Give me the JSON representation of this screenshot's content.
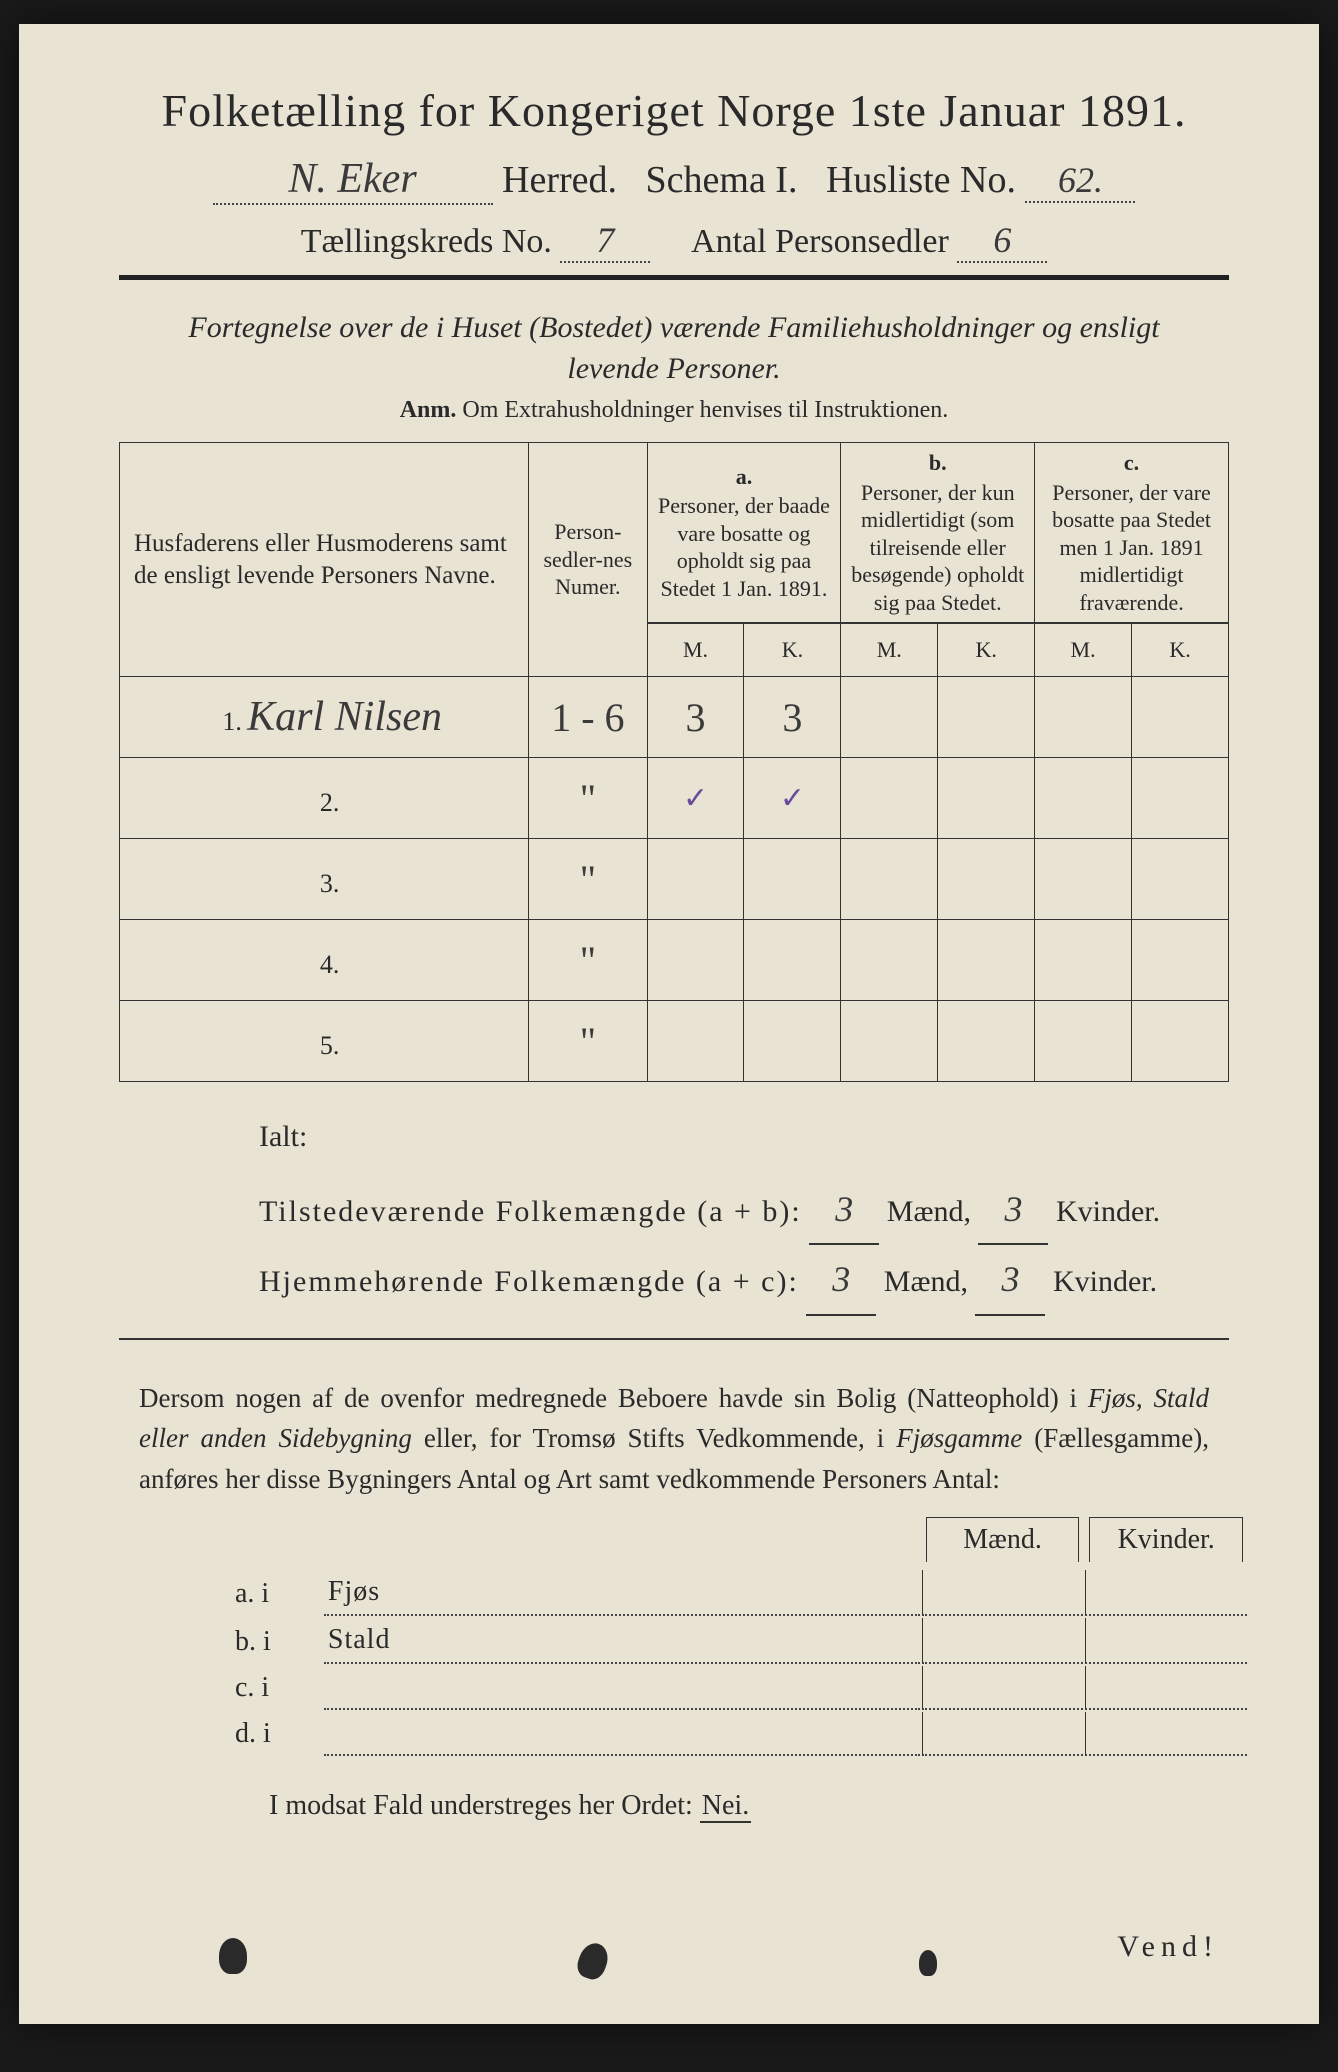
{
  "header": {
    "title": "Folketælling for Kongeriget Norge 1ste Januar 1891.",
    "herred_value": "N. Eker",
    "herred_label": "Herred.",
    "schema_label": "Schema I.",
    "husliste_label": "Husliste No.",
    "husliste_value": "62.",
    "tkreds_label": "Tællingskreds No.",
    "tkreds_value": "7",
    "antal_label": "Antal Personsedler",
    "antal_value": "6"
  },
  "description": {
    "line1": "Fortegnelse over de i Huset (Bostedet) værende Familiehusholdninger og ensligt",
    "line2": "levende Personer.",
    "anm_label": "Anm.",
    "anm_text": "Om Extrahusholdninger henvises til Instruktionen."
  },
  "table": {
    "col_names": "Husfaderens eller Husmoderens samt de ensligt levende Personers Navne.",
    "col_numer": "Person-sedler-nes Numer.",
    "col_a_letter": "a.",
    "col_a": "Personer, der baade vare bosatte og opholdt sig paa Stedet 1 Jan. 1891.",
    "col_b_letter": "b.",
    "col_b": "Personer, der kun midlertidigt (som tilreisende eller besøgende) opholdt sig paa Stedet.",
    "col_c_letter": "c.",
    "col_c": "Personer, der vare bosatte paa Stedet men 1 Jan. 1891 midlertidigt fraværende.",
    "M": "M.",
    "K": "K.",
    "rows": [
      {
        "n": "1.",
        "name": "Karl Nilsen",
        "numer": "1 - 6",
        "aM": "3",
        "aK": "3",
        "bM": "",
        "bK": "",
        "cM": "",
        "cK": ""
      },
      {
        "n": "2.",
        "name": "",
        "numer": "\"",
        "aM": "✓",
        "aK": "✓",
        "bM": "",
        "bK": "",
        "cM": "",
        "cK": ""
      },
      {
        "n": "3.",
        "name": "",
        "numer": "\"",
        "aM": "",
        "aK": "",
        "bM": "",
        "bK": "",
        "cM": "",
        "cK": ""
      },
      {
        "n": "4.",
        "name": "",
        "numer": "\"",
        "aM": "",
        "aK": "",
        "bM": "",
        "bK": "",
        "cM": "",
        "cK": ""
      },
      {
        "n": "5.",
        "name": "",
        "numer": "\"",
        "aM": "",
        "aK": "",
        "bM": "",
        "bK": "",
        "cM": "",
        "cK": ""
      }
    ]
  },
  "totals": {
    "ialt": "Ialt:",
    "line_a_label": "Tilstedeværende Folkemængde (a + b):",
    "line_b_label": "Hjemmehørende Folkemængde (a + c):",
    "maend": "Mænd,",
    "kvinder": "Kvinder.",
    "a_m": "3",
    "a_k": "3",
    "c_m": "3",
    "c_k": "3"
  },
  "paragraph": {
    "text1": "Dersom nogen af de ovenfor medregnede Beboere havde sin Bolig (Natteophold) i ",
    "it1": "Fjøs, Stald eller anden Sidebygning",
    "text2": " eller, for Tromsø Stifts Vedkommende, i ",
    "it2": "Fjøsgamme",
    "text3": " (Fællesgamme), anføres her disse Bygningers Antal og Art samt vedkommende Personers Antal:"
  },
  "subtable": {
    "maend": "Mænd.",
    "kvinder": "Kvinder.",
    "rows": [
      {
        "l": "a.  i",
        "t": "Fjøs"
      },
      {
        "l": "b.  i",
        "t": "Stald"
      },
      {
        "l": "c.  i",
        "t": ""
      },
      {
        "l": "d.  i",
        "t": ""
      }
    ]
  },
  "footer": {
    "nei_line_a": "I modsat Fald understreges her Ordet: ",
    "nei": "Nei.",
    "vend": "Vend!"
  },
  "style": {
    "page_bg": "#e8e3d3",
    "ink": "#2a2a2a",
    "hand_ink": "#3a3a3a",
    "check_color": "#6a4a9a"
  }
}
